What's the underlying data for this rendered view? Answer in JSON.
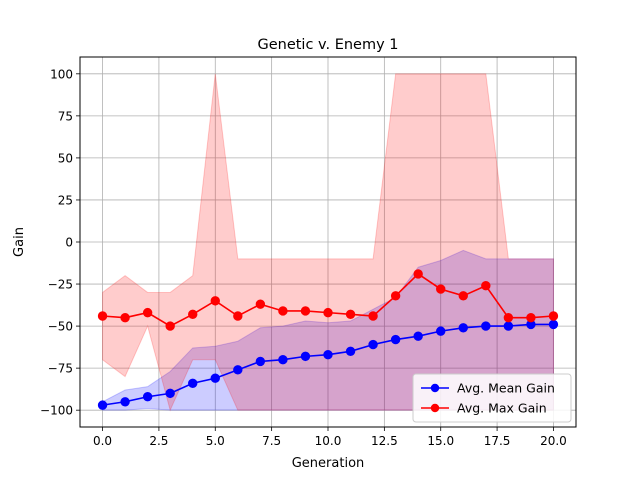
{
  "chart_data": {
    "type": "line",
    "title": "Genetic v. Enemy 1",
    "xlabel": "Generation",
    "ylabel": "Gain",
    "xlim": [
      -1,
      21
    ],
    "ylim": [
      -110,
      110
    ],
    "x_ticks": [
      0.0,
      2.5,
      5.0,
      7.5,
      10.0,
      12.5,
      15.0,
      17.5,
      20.0
    ],
    "x_tick_labels": [
      "0.0",
      "2.5",
      "5.0",
      "7.5",
      "10.0",
      "12.5",
      "15.0",
      "17.5",
      "20.0"
    ],
    "y_ticks": [
      -100,
      -75,
      -50,
      -25,
      0,
      25,
      50,
      75,
      100
    ],
    "y_tick_labels": [
      "−100",
      "−75",
      "−50",
      "−25",
      "0",
      "25",
      "50",
      "75",
      "100"
    ],
    "grid": true,
    "legend_position": "lower-right",
    "x": [
      0,
      1,
      2,
      3,
      4,
      5,
      6,
      7,
      8,
      9,
      10,
      11,
      12,
      13,
      14,
      15,
      16,
      17,
      18,
      19,
      20
    ],
    "series": [
      {
        "name": "Avg. Mean Gain",
        "color": "#0000ff",
        "marker": "circle",
        "values": [
          -97,
          -95,
          -92,
          -90,
          -84,
          -81,
          -76,
          -71,
          -70,
          -68,
          -67,
          -65,
          -61,
          -58,
          -56,
          -53,
          -51,
          -50,
          -50,
          -49,
          -49
        ],
        "band_color": "#0000ff",
        "band_upper": [
          -95,
          -88,
          -86,
          -77,
          -63,
          -62,
          -59,
          -51,
          -50,
          -47,
          -48,
          -47,
          -40,
          -33,
          -15,
          -11,
          -5,
          -10,
          -10,
          -10,
          -10
        ],
        "band_lower": [
          -100,
          -100,
          -99,
          -100,
          -100,
          -100,
          -100,
          -100,
          -100,
          -100,
          -100,
          -100,
          -100,
          -100,
          -100,
          -100,
          -100,
          -100,
          -100,
          -100,
          -100
        ]
      },
      {
        "name": "Avg. Max Gain",
        "color": "#ff0000",
        "marker": "circle",
        "values": [
          -44,
          -45,
          -42,
          -50,
          -43,
          -35,
          -44,
          -37,
          -41,
          -41,
          -42,
          -43,
          -44,
          -32,
          -19,
          -28,
          -32,
          -26,
          -45,
          -45,
          -44
        ],
        "band_color": "#ff0000",
        "band_upper": [
          -30,
          -20,
          -30,
          -30,
          -20,
          100,
          -10,
          -10,
          -10,
          -10,
          -10,
          -10,
          -10,
          100,
          100,
          100,
          100,
          100,
          -10,
          -10,
          -10
        ],
        "band_lower": [
          -70,
          -80,
          -50,
          -100,
          -70,
          -70,
          -100,
          -100,
          -100,
          -100,
          -100,
          -100,
          -100,
          -100,
          -100,
          -100,
          -100,
          -100,
          -100,
          -100,
          -100
        ]
      }
    ]
  }
}
